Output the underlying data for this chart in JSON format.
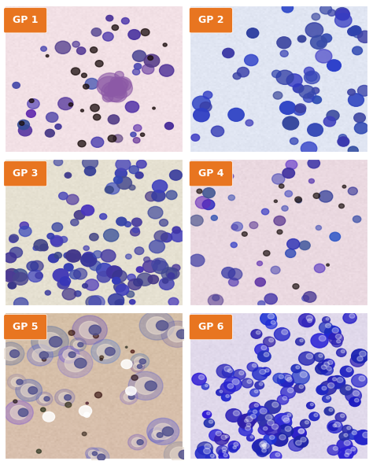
{
  "panels": [
    {
      "label": "GP 1",
      "bg_color": [
        0.95,
        0.88,
        0.9
      ],
      "cell_color": [
        0.25,
        0.2,
        0.55
      ],
      "dark_spots": true,
      "density": 35,
      "has_cluster": true,
      "cluster_color": [
        0.55,
        0.35,
        0.65
      ],
      "style": "sparse_dark"
    },
    {
      "label": "GP 2",
      "bg_color": [
        0.88,
        0.9,
        0.95
      ],
      "cell_color": [
        0.2,
        0.25,
        0.65
      ],
      "dark_spots": false,
      "density": 60,
      "has_cluster": false,
      "cluster_color": null,
      "style": "medium_blue"
    },
    {
      "label": "GP 3",
      "bg_color": [
        0.9,
        0.88,
        0.82
      ],
      "cell_color": [
        0.25,
        0.25,
        0.6
      ],
      "dark_spots": false,
      "density": 70,
      "has_cluster": false,
      "cluster_color": null,
      "style": "dense_blue"
    },
    {
      "label": "GP 4",
      "bg_color": [
        0.92,
        0.85,
        0.88
      ],
      "cell_color": [
        0.2,
        0.2,
        0.6
      ],
      "dark_spots": true,
      "density": 45,
      "has_cluster": false,
      "cluster_color": null,
      "style": "sparse_mixed"
    },
    {
      "label": "GP 5",
      "bg_color": [
        0.85,
        0.75,
        0.68
      ],
      "cell_color": [
        0.35,
        0.35,
        0.65
      ],
      "dark_spots": true,
      "density": 25,
      "has_cluster": false,
      "cluster_color": null,
      "style": "brown_sparse"
    },
    {
      "label": "GP 6",
      "bg_color": [
        0.88,
        0.85,
        0.92
      ],
      "cell_color": [
        0.15,
        0.15,
        0.7
      ],
      "dark_spots": false,
      "density": 120,
      "has_cluster": false,
      "cluster_color": null,
      "style": "very_dense"
    }
  ],
  "label_bg_color": "#E87520",
  "label_text_color": "#FFFFFF",
  "label_fontsize": 9,
  "label_fontweight": "bold",
  "grid_rows": 3,
  "grid_cols": 2,
  "border_color": "#FFFFFF",
  "border_width": 3,
  "figsize": [
    4.74,
    5.91
  ],
  "dpi": 100
}
